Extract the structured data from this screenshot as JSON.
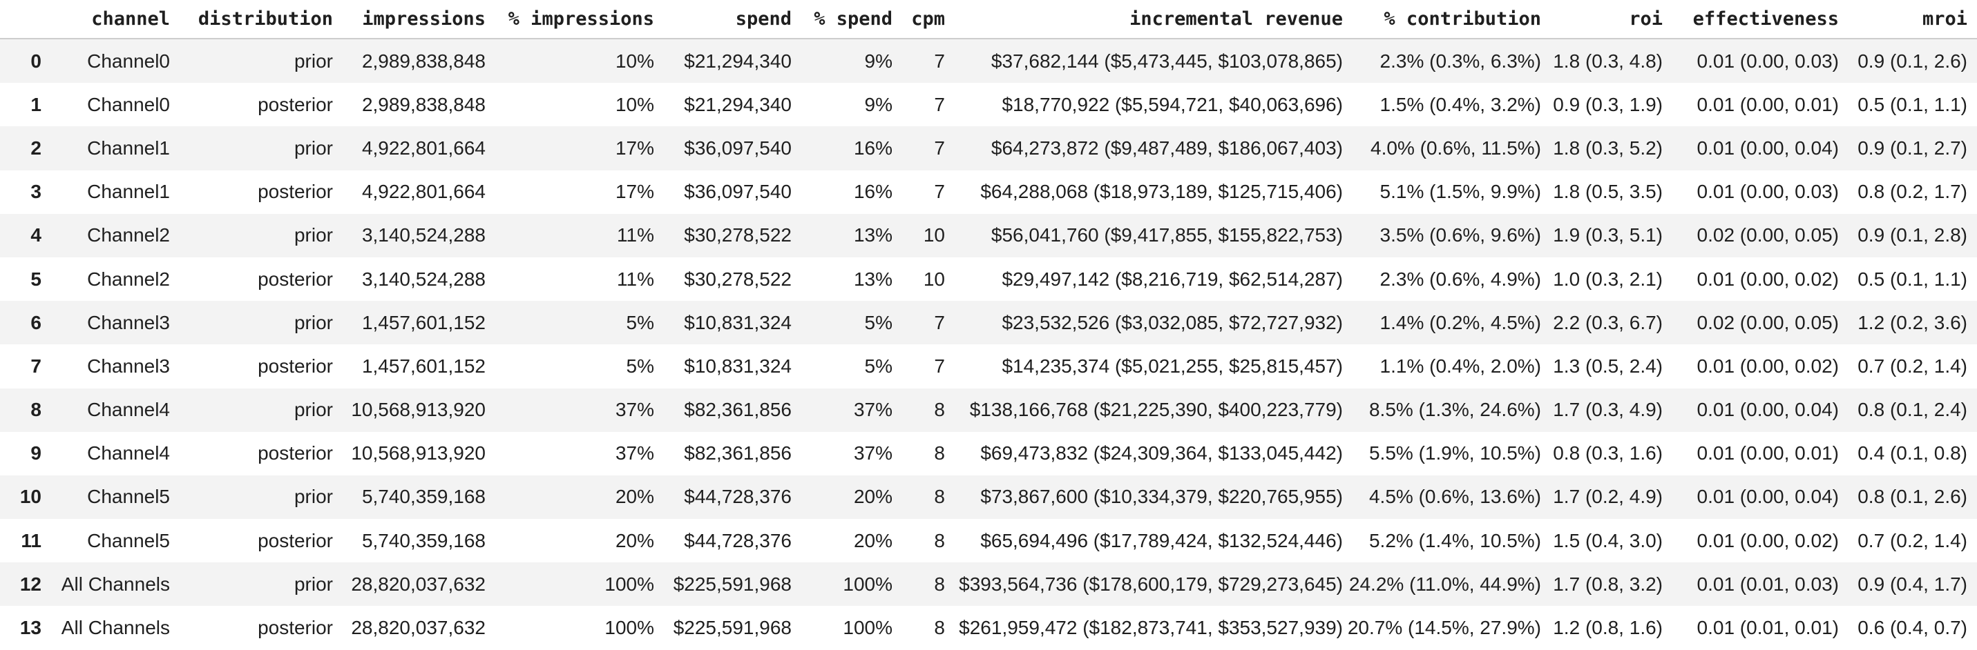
{
  "colors": {
    "stripe": "#f3f3f3",
    "row_alt": "#ffffff",
    "header_divider": "#cdcdcd",
    "text": "#1f1f1f"
  },
  "chart_data": {
    "type": "table",
    "columns": [
      "",
      "channel",
      "distribution",
      "impressions",
      "% impressions",
      "spend",
      "% spend",
      "cpm",
      "incremental revenue",
      "% contribution",
      "roi",
      "effectiveness",
      "mroi"
    ],
    "rows": [
      [
        "0",
        "Channel0",
        "prior",
        "2,989,838,848",
        "10%",
        "$21,294,340",
        "9%",
        "7",
        "$37,682,144 ($5,473,445, $103,078,865)",
        "2.3% (0.3%, 6.3%)",
        "1.8 (0.3, 4.8)",
        "0.01 (0.00, 0.03)",
        "0.9 (0.1, 2.6)"
      ],
      [
        "1",
        "Channel0",
        "posterior",
        "2,989,838,848",
        "10%",
        "$21,294,340",
        "9%",
        "7",
        "$18,770,922 ($5,594,721, $40,063,696)",
        "1.5% (0.4%, 3.2%)",
        "0.9 (0.3, 1.9)",
        "0.01 (0.00, 0.01)",
        "0.5 (0.1, 1.1)"
      ],
      [
        "2",
        "Channel1",
        "prior",
        "4,922,801,664",
        "17%",
        "$36,097,540",
        "16%",
        "7",
        "$64,273,872 ($9,487,489, $186,067,403)",
        "4.0% (0.6%, 11.5%)",
        "1.8 (0.3, 5.2)",
        "0.01 (0.00, 0.04)",
        "0.9 (0.1, 2.7)"
      ],
      [
        "3",
        "Channel1",
        "posterior",
        "4,922,801,664",
        "17%",
        "$36,097,540",
        "16%",
        "7",
        "$64,288,068 ($18,973,189, $125,715,406)",
        "5.1% (1.5%, 9.9%)",
        "1.8 (0.5, 3.5)",
        "0.01 (0.00, 0.03)",
        "0.8 (0.2, 1.7)"
      ],
      [
        "4",
        "Channel2",
        "prior",
        "3,140,524,288",
        "11%",
        "$30,278,522",
        "13%",
        "10",
        "$56,041,760 ($9,417,855, $155,822,753)",
        "3.5% (0.6%, 9.6%)",
        "1.9 (0.3, 5.1)",
        "0.02 (0.00, 0.05)",
        "0.9 (0.1, 2.8)"
      ],
      [
        "5",
        "Channel2",
        "posterior",
        "3,140,524,288",
        "11%",
        "$30,278,522",
        "13%",
        "10",
        "$29,497,142 ($8,216,719, $62,514,287)",
        "2.3% (0.6%, 4.9%)",
        "1.0 (0.3, 2.1)",
        "0.01 (0.00, 0.02)",
        "0.5 (0.1, 1.1)"
      ],
      [
        "6",
        "Channel3",
        "prior",
        "1,457,601,152",
        "5%",
        "$10,831,324",
        "5%",
        "7",
        "$23,532,526 ($3,032,085, $72,727,932)",
        "1.4% (0.2%, 4.5%)",
        "2.2 (0.3, 6.7)",
        "0.02 (0.00, 0.05)",
        "1.2 (0.2, 3.6)"
      ],
      [
        "7",
        "Channel3",
        "posterior",
        "1,457,601,152",
        "5%",
        "$10,831,324",
        "5%",
        "7",
        "$14,235,374 ($5,021,255, $25,815,457)",
        "1.1% (0.4%, 2.0%)",
        "1.3 (0.5, 2.4)",
        "0.01 (0.00, 0.02)",
        "0.7 (0.2, 1.4)"
      ],
      [
        "8",
        "Channel4",
        "prior",
        "10,568,913,920",
        "37%",
        "$82,361,856",
        "37%",
        "8",
        "$138,166,768 ($21,225,390, $400,223,779)",
        "8.5% (1.3%, 24.6%)",
        "1.7 (0.3, 4.9)",
        "0.01 (0.00, 0.04)",
        "0.8 (0.1, 2.4)"
      ],
      [
        "9",
        "Channel4",
        "posterior",
        "10,568,913,920",
        "37%",
        "$82,361,856",
        "37%",
        "8",
        "$69,473,832 ($24,309,364, $133,045,442)",
        "5.5% (1.9%, 10.5%)",
        "0.8 (0.3, 1.6)",
        "0.01 (0.00, 0.01)",
        "0.4 (0.1, 0.8)"
      ],
      [
        "10",
        "Channel5",
        "prior",
        "5,740,359,168",
        "20%",
        "$44,728,376",
        "20%",
        "8",
        "$73,867,600 ($10,334,379, $220,765,955)",
        "4.5% (0.6%, 13.6%)",
        "1.7 (0.2, 4.9)",
        "0.01 (0.00, 0.04)",
        "0.8 (0.1, 2.6)"
      ],
      [
        "11",
        "Channel5",
        "posterior",
        "5,740,359,168",
        "20%",
        "$44,728,376",
        "20%",
        "8",
        "$65,694,496 ($17,789,424, $132,524,446)",
        "5.2% (1.4%, 10.5%)",
        "1.5 (0.4, 3.0)",
        "0.01 (0.00, 0.02)",
        "0.7 (0.2, 1.4)"
      ],
      [
        "12",
        "All Channels",
        "prior",
        "28,820,037,632",
        "100%",
        "$225,591,968",
        "100%",
        "8",
        "$393,564,736 ($178,600,179, $729,273,645)",
        "24.2% (11.0%, 44.9%)",
        "1.7 (0.8, 3.2)",
        "0.01 (0.01, 0.03)",
        "0.9 (0.4, 1.7)"
      ],
      [
        "13",
        "All Channels",
        "posterior",
        "28,820,037,632",
        "100%",
        "$225,591,968",
        "100%",
        "8",
        "$261,959,472 ($182,873,741, $353,527,939)",
        "20.7% (14.5%, 27.9%)",
        "1.2 (0.8, 1.6)",
        "0.01 (0.01, 0.01)",
        "0.6 (0.4, 0.7)"
      ]
    ]
  }
}
